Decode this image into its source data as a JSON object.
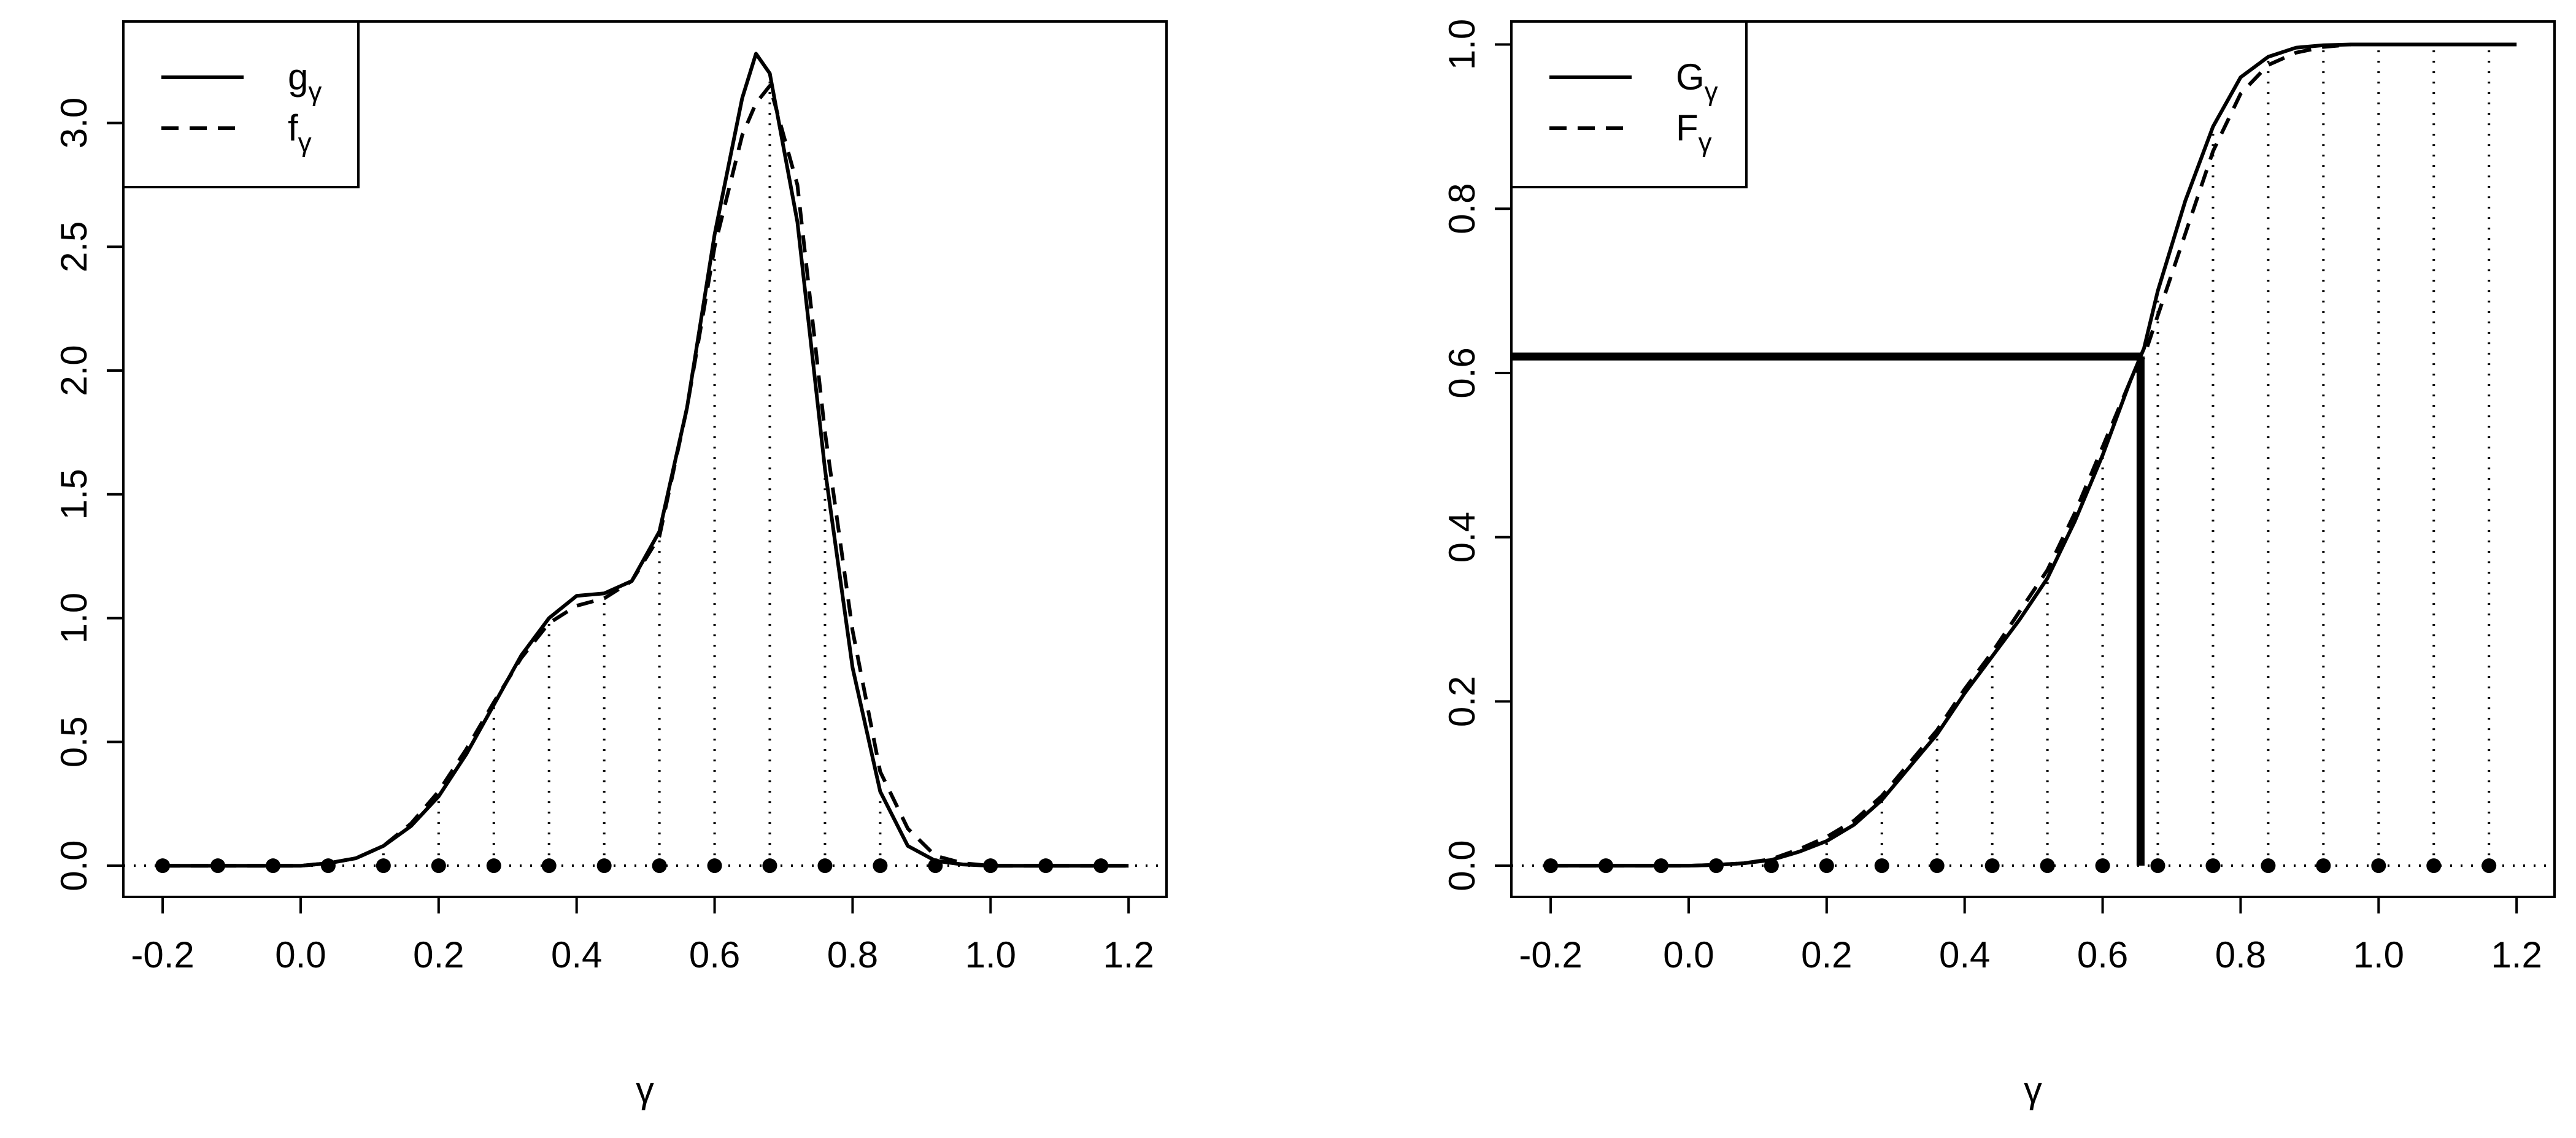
{
  "chart_data": [
    {
      "type": "line",
      "x_label": "γ",
      "x": [
        -0.2,
        -0.16,
        -0.12,
        -0.08,
        -0.04,
        0,
        0.04,
        0.08,
        0.12,
        0.16,
        0.2,
        0.24,
        0.28,
        0.32,
        0.36,
        0.4,
        0.44,
        0.48,
        0.52,
        0.56,
        0.6,
        0.64,
        0.66,
        0.68,
        0.72,
        0.76,
        0.8,
        0.84,
        0.88,
        0.92,
        0.96,
        1,
        1.04,
        1.08,
        1.12,
        1.16,
        1.2
      ],
      "series": [
        {
          "name": "g",
          "name_subscript": "γ",
          "color": "#000000",
          "dash": "solid",
          "values": [
            0,
            0,
            0,
            0,
            0,
            0,
            0.01,
            0.03,
            0.08,
            0.16,
            0.28,
            0.45,
            0.65,
            0.85,
            1.0,
            1.09,
            1.1,
            1.15,
            1.35,
            1.85,
            2.55,
            3.1,
            3.28,
            3.2,
            2.6,
            1.6,
            0.8,
            0.3,
            0.08,
            0.02,
            0.005,
            0,
            0,
            0,
            0,
            0,
            0
          ]
        },
        {
          "name": "f",
          "name_subscript": "γ",
          "color": "#000000",
          "dash": "dashed",
          "values": [
            0,
            0,
            0,
            0,
            0,
            0,
            0.01,
            0.03,
            0.08,
            0.17,
            0.3,
            0.47,
            0.66,
            0.84,
            0.98,
            1.05,
            1.08,
            1.15,
            1.33,
            1.85,
            2.5,
            2.95,
            3.08,
            3.15,
            2.75,
            1.75,
            0.95,
            0.38,
            0.15,
            0.04,
            0.01,
            0,
            0,
            0,
            0,
            0,
            0
          ]
        }
      ],
      "points": {
        "x": [
          -0.2,
          -0.12,
          -0.04,
          0.04,
          0.12,
          0.2,
          0.28,
          0.36,
          0.44,
          0.52,
          0.6,
          0.68,
          0.76,
          0.84,
          0.92,
          1,
          1.08,
          1.16
        ],
        "y": [
          0,
          0,
          0,
          0,
          0,
          0,
          0,
          0,
          0,
          0,
          0,
          0,
          0,
          0,
          0,
          0,
          0,
          0
        ]
      },
      "drop_lines": true,
      "xlim": [
        -0.257,
        1.255
      ],
      "ylim": [
        -0.126,
        3.41
      ],
      "xticks": [
        -0.2,
        {
          "value": 0,
          "label": "0.0"
        },
        0.2,
        0.4,
        0.6,
        0.8,
        {
          "value": 1,
          "label": "1.0"
        },
        1.2
      ],
      "yticks": [
        {
          "value": 0,
          "label": "0.0"
        },
        0.5,
        {
          "value": 1,
          "label": "1.0"
        },
        1.5,
        {
          "value": 2,
          "label": "2.0"
        },
        2.5,
        {
          "value": 3,
          "label": "3.0"
        }
      ],
      "legend": "top-left"
    },
    {
      "type": "line",
      "x_label": "γ",
      "x": [
        -0.2,
        -0.16,
        -0.12,
        -0.08,
        -0.04,
        0,
        0.04,
        0.08,
        0.12,
        0.16,
        0.2,
        0.24,
        0.28,
        0.32,
        0.36,
        0.4,
        0.44,
        0.48,
        0.52,
        0.56,
        0.6,
        0.64,
        0.66,
        0.68,
        0.72,
        0.76,
        0.8,
        0.84,
        0.88,
        0.92,
        0.96,
        1,
        1.04,
        1.08,
        1.12,
        1.16,
        1.2
      ],
      "series": [
        {
          "name": "G",
          "name_subscript": "γ",
          "color": "#000000",
          "dash": "solid",
          "values": [
            0,
            0,
            0,
            0,
            0,
            0,
            0.001,
            0.003,
            0.007,
            0.017,
            0.03,
            0.05,
            0.08,
            0.12,
            0.16,
            0.21,
            0.255,
            0.3,
            0.35,
            0.42,
            0.5,
            0.59,
            0.63,
            0.7,
            0.81,
            0.9,
            0.96,
            0.985,
            0.996,
            0.999,
            1,
            1,
            1,
            1,
            1,
            1,
            1
          ]
        },
        {
          "name": "F",
          "name_subscript": "γ",
          "color": "#000000",
          "dash": "dashed",
          "values": [
            0,
            0,
            0,
            0,
            0,
            0,
            0.001,
            0.003,
            0.008,
            0.02,
            0.035,
            0.055,
            0.085,
            0.125,
            0.165,
            0.215,
            0.26,
            0.31,
            0.36,
            0.43,
            0.51,
            0.59,
            0.62,
            0.67,
            0.77,
            0.87,
            0.94,
            0.975,
            0.99,
            0.997,
            1,
            1,
            1,
            1,
            1,
            1,
            1
          ]
        }
      ],
      "points": {
        "x": [
          -0.2,
          -0.12,
          -0.04,
          0.04,
          0.12,
          0.2,
          0.28,
          0.36,
          0.44,
          0.52,
          0.6,
          0.68,
          0.76,
          0.84,
          0.92,
          1,
          1.08,
          1.16
        ],
        "y": [
          0,
          0,
          0,
          0,
          0,
          0,
          0,
          0,
          0,
          0,
          0,
          0,
          0,
          0,
          0,
          0,
          0,
          0
        ]
      },
      "drop_lines": true,
      "reference": {
        "x": 0.655,
        "y": 0.62
      },
      "xlim": [
        -0.257,
        1.255
      ],
      "ylim": [
        -0.038,
        1.028
      ],
      "xticks": [
        -0.2,
        {
          "value": 0,
          "label": "0.0"
        },
        0.2,
        0.4,
        0.6,
        0.8,
        {
          "value": 1,
          "label": "1.0"
        },
        1.2
      ],
      "yticks": [
        {
          "value": 0,
          "label": "0.0"
        },
        0.2,
        0.4,
        0.6,
        0.8,
        {
          "value": 1,
          "label": "1.0"
        }
      ],
      "legend": "top-left"
    }
  ]
}
